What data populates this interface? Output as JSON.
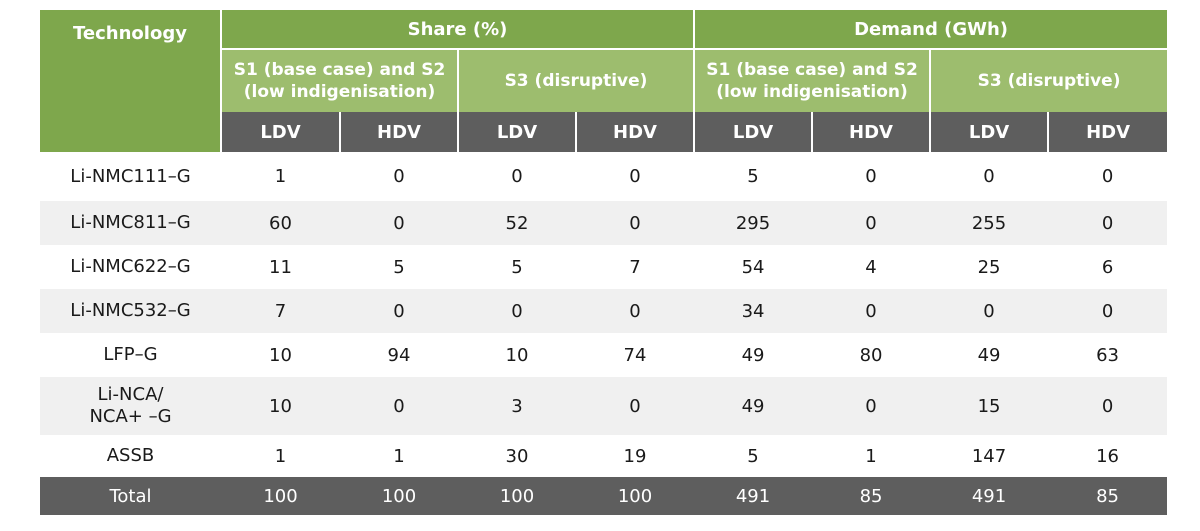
{
  "header": {
    "technology": "Technology",
    "share": "Share (%)",
    "demand": "Demand (GWh)",
    "s1_line1": "S1 (base case) and S2",
    "s1_line2": "(low indigenisation)",
    "s3": "S3 (disruptive)",
    "ldv": "LDV",
    "hdv": "HDV"
  },
  "rows": [
    {
      "tech": "Li-NMC111–G",
      "vals": [
        "1",
        "0",
        "0",
        "0",
        "5",
        "0",
        "0",
        "0"
      ]
    },
    {
      "tech": "Li-NMC811–G",
      "vals": [
        "60",
        "0",
        "52",
        "0",
        "295",
        "0",
        "255",
        "0"
      ]
    },
    {
      "tech": "Li-NMC622–G",
      "vals": [
        "11",
        "5",
        "5",
        "7",
        "54",
        "4",
        "25",
        "6"
      ]
    },
    {
      "tech": "Li-NMC532–G",
      "vals": [
        "7",
        "0",
        "0",
        "0",
        "34",
        "0",
        "0",
        "0"
      ]
    },
    {
      "tech": "LFP–G",
      "vals": [
        "10",
        "94",
        "10",
        "74",
        "49",
        "80",
        "49",
        "63"
      ]
    },
    {
      "tech": "Li-NCA/",
      "tech2": "NCA+ –G",
      "vals": [
        "10",
        "0",
        "3",
        "0",
        "49",
        "0",
        "15",
        "0"
      ]
    },
    {
      "tech": "ASSB",
      "vals": [
        "1",
        "1",
        "30",
        "19",
        "5",
        "1",
        "147",
        "16"
      ]
    }
  ],
  "total": {
    "tech": "Total",
    "vals": [
      "100",
      "100",
      "100",
      "100",
      "491",
      "85",
      "491",
      "85"
    ]
  }
}
